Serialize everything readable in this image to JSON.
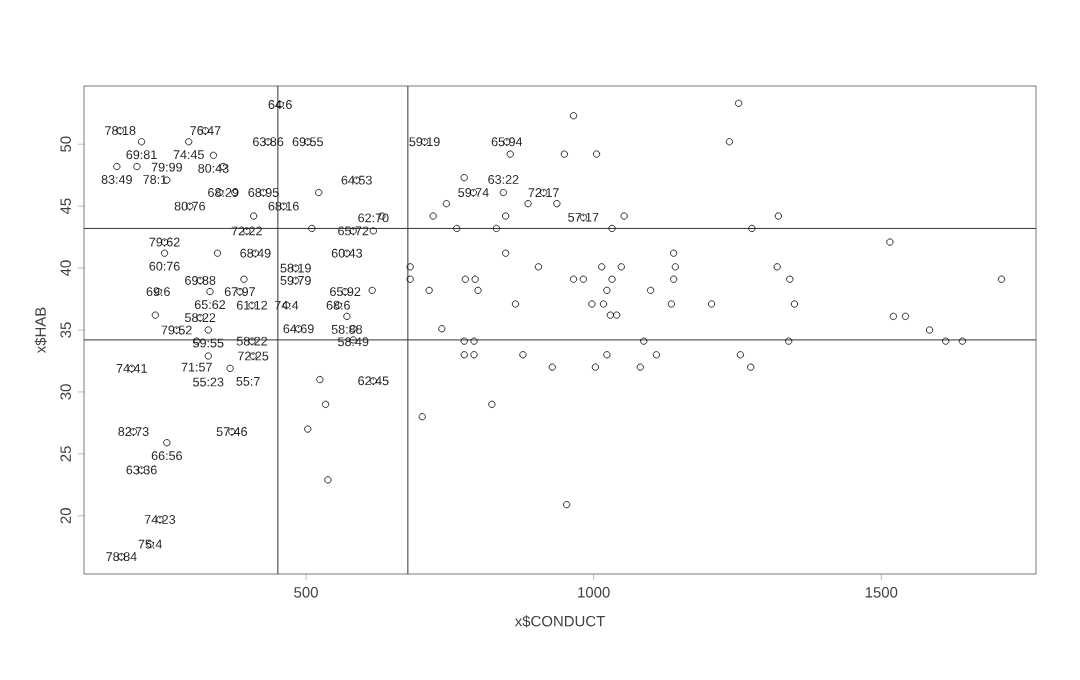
{
  "chart_data": {
    "type": "scatter",
    "xlabel": "x$CONDUCT",
    "ylabel": "x$HAB",
    "color": "#000000",
    "marker": "circle",
    "xlim": [
      114,
      1769
    ],
    "ylim": [
      15.3,
      54.7
    ],
    "xticks": [
      500,
      1000,
      1500
    ],
    "yticks": [
      20,
      25,
      30,
      35,
      40,
      45,
      50
    ],
    "ref_lines": [
      {
        "axis": "x",
        "value": 451
      },
      {
        "axis": "x",
        "value": 677
      },
      {
        "axis": "y",
        "value": 43.2
      },
      {
        "axis": "y",
        "value": 34.2
      }
    ],
    "x": [
      455,
      177,
      325,
      214,
      296,
      434,
      503,
      706,
      849,
      339,
      171,
      206,
      356,
      258,
      588,
      426,
      298,
      461,
      397,
      582,
      617,
      254,
      254,
      412,
      571,
      482,
      316,
      482,
      243,
      333,
      385,
      568,
      406,
      466,
      556,
      316,
      571,
      275,
      330,
      487,
      582,
      310,
      406,
      330,
      408,
      368,
      197,
      617,
      200,
      371,
      258,
      214,
      246,
      229,
      179,
      791,
      843,
      913,
      982,
      350,
      376,
      522,
      409,
      632,
      510,
      346,
      392,
      615,
      238,
      582,
      965,
      1252,
      1236,
      855,
      949,
      1005,
      775,
      744,
      886,
      936,
      721,
      847,
      1053,
      1321,
      762,
      831,
      1032,
      1275,
      847,
      1139,
      681,
      904,
      1014,
      1048,
      1142,
      1319,
      681,
      777,
      794,
      965,
      982,
      1032,
      1139,
      1341,
      714,
      799,
      1023,
      1099,
      864,
      997,
      1017,
      1135,
      1205,
      1349,
      1029,
      1040,
      736,
      775,
      792,
      1087,
      1339,
      775,
      792,
      877,
      1023,
      1109,
      1255,
      928,
      1003,
      1081,
      1273,
      702,
      823,
      953,
      524,
      534,
      503,
      538,
      1515,
      1709,
      1521,
      1542,
      1584,
      1612,
      1641
    ],
    "values": [
      53.2,
      51.1,
      51.1,
      50.2,
      50.2,
      50.2,
      50.2,
      50.2,
      50.2,
      49.1,
      48.2,
      48.2,
      48.2,
      47.1,
      47.1,
      46.1,
      45.0,
      45.0,
      43.0,
      43.0,
      43.0,
      42.1,
      41.2,
      41.2,
      41.2,
      40.0,
      39.0,
      39.0,
      38.1,
      38.1,
      38.1,
      38.1,
      37.0,
      37.0,
      37.0,
      36.0,
      36.1,
      35.0,
      35.0,
      35.1,
      35.1,
      34.1,
      34.1,
      32.9,
      32.9,
      31.9,
      31.9,
      30.9,
      26.8,
      26.8,
      25.9,
      23.7,
      19.7,
      17.7,
      16.7,
      46.1,
      46.1,
      46.1,
      44.1,
      46.1,
      46.1,
      46.1,
      44.2,
      44.2,
      43.2,
      41.2,
      39.1,
      38.2,
      36.2,
      34.2,
      52.3,
      53.3,
      50.2,
      49.2,
      49.2,
      49.2,
      47.3,
      45.2,
      45.2,
      45.2,
      44.2,
      44.2,
      44.2,
      44.2,
      43.2,
      43.2,
      43.2,
      43.2,
      41.2,
      41.2,
      40.1,
      40.1,
      40.1,
      40.1,
      40.1,
      40.1,
      39.1,
      39.1,
      39.1,
      39.1,
      39.1,
      39.1,
      39.1,
      39.1,
      38.2,
      38.2,
      38.2,
      38.2,
      37.1,
      37.1,
      37.1,
      37.1,
      37.1,
      37.1,
      36.2,
      36.2,
      35.1,
      34.1,
      34.1,
      34.1,
      34.1,
      33.0,
      33.0,
      33.0,
      33.0,
      33.0,
      33.0,
      32.0,
      32.0,
      32.0,
      32.0,
      28.0,
      29.0,
      20.9,
      31.0,
      29.0,
      27.0,
      22.9,
      42.1,
      39.1,
      36.1,
      36.1,
      35.0,
      34.1,
      34.1
    ],
    "annotations": [
      {
        "text": "64:6",
        "x": 455,
        "y": 53.2
      },
      {
        "text": "78:18",
        "x": 177,
        "y": 51.1
      },
      {
        "text": "76:47",
        "x": 325,
        "y": 51.1
      },
      {
        "text": "69:81",
        "x": 214,
        "y": 50.2
      },
      {
        "text": "74:45",
        "x": 296,
        "y": 50.2
      },
      {
        "text": "63:86",
        "x": 434,
        "y": 50.2
      },
      {
        "text": "69:55",
        "x": 503,
        "y": 50.2
      },
      {
        "text": "59:19",
        "x": 706,
        "y": 50.2
      },
      {
        "text": "65:94",
        "x": 849,
        "y": 50.2
      },
      {
        "text": "80:43",
        "x": 339,
        "y": 49.1
      },
      {
        "text": "83:49",
        "x": 171,
        "y": 48.2
      },
      {
        "text": "78:1",
        "x": 206,
        "y": 48.2
      },
      {
        "text": "68:29",
        "x": 356,
        "y": 48.2
      },
      {
        "text": "79:99",
        "x": 258,
        "y": 47.1
      },
      {
        "text": "64:53",
        "x": 588,
        "y": 47.1
      },
      {
        "text": "68:95",
        "x": 426,
        "y": 46.1
      },
      {
        "text": "80:76",
        "x": 298,
        "y": 45.0
      },
      {
        "text": "68:16",
        "x": 461,
        "y": 45.0
      },
      {
        "text": "72:22",
        "x": 397,
        "y": 43.0
      },
      {
        "text": "65:72",
        "x": 582,
        "y": 43.0
      },
      {
        "text": "62:70",
        "x": 617,
        "y": 43.0
      },
      {
        "text": "79:62",
        "x": 254,
        "y": 42.1
      },
      {
        "text": "60:76",
        "x": 254,
        "y": 41.2
      },
      {
        "text": "68:49",
        "x": 412,
        "y": 41.2
      },
      {
        "text": "60:43",
        "x": 571,
        "y": 41.2
      },
      {
        "text": "58:19",
        "x": 482,
        "y": 40.0
      },
      {
        "text": "69:88",
        "x": 316,
        "y": 39.0
      },
      {
        "text": "59:79",
        "x": 482,
        "y": 39.0
      },
      {
        "text": "69:6",
        "x": 243,
        "y": 38.1
      },
      {
        "text": "65:62",
        "x": 333,
        "y": 38.1
      },
      {
        "text": "67:97",
        "x": 385,
        "y": 38.1
      },
      {
        "text": "65:92",
        "x": 568,
        "y": 38.1
      },
      {
        "text": "61:12",
        "x": 406,
        "y": 37.0
      },
      {
        "text": "74:4",
        "x": 466,
        "y": 37.0
      },
      {
        "text": "68:6",
        "x": 556,
        "y": 37.0
      },
      {
        "text": "58:22",
        "x": 316,
        "y": 36.0
      },
      {
        "text": "58:88",
        "x": 571,
        "y": 36.1
      },
      {
        "text": "79:52",
        "x": 275,
        "y": 35.0
      },
      {
        "text": "59:55",
        "x": 330,
        "y": 35.0
      },
      {
        "text": "64:69",
        "x": 487,
        "y": 35.1
      },
      {
        "text": "58:49",
        "x": 582,
        "y": 35.1
      },
      {
        "text": "71:57",
        "x": 310,
        "y": 34.1
      },
      {
        "text": "58:22",
        "x": 406,
        "y": 34.1
      },
      {
        "text": "55:23",
        "x": 330,
        "y": 32.9
      },
      {
        "text": "72:25",
        "x": 408,
        "y": 32.9
      },
      {
        "text": "55:7",
        "x": 368,
        "y": 31.9
      },
      {
        "text": "74:41",
        "x": 197,
        "y": 31.9
      },
      {
        "text": "62:45",
        "x": 617,
        "y": 30.9
      },
      {
        "text": "82:73",
        "x": 200,
        "y": 26.8
      },
      {
        "text": "57:46",
        "x": 371,
        "y": 26.8
      },
      {
        "text": "66:56",
        "x": 258,
        "y": 25.9
      },
      {
        "text": "63:36",
        "x": 214,
        "y": 23.7
      },
      {
        "text": "74:23",
        "x": 246,
        "y": 19.7
      },
      {
        "text": "75:4",
        "x": 229,
        "y": 17.7
      },
      {
        "text": "78:84",
        "x": 179,
        "y": 16.7
      },
      {
        "text": "59:74",
        "x": 791,
        "y": 46.1
      },
      {
        "text": "63:22",
        "x": 843,
        "y": 46.1
      },
      {
        "text": "72:17",
        "x": 913,
        "y": 46.1
      },
      {
        "text": "57:17",
        "x": 982,
        "y": 44.1
      }
    ]
  }
}
